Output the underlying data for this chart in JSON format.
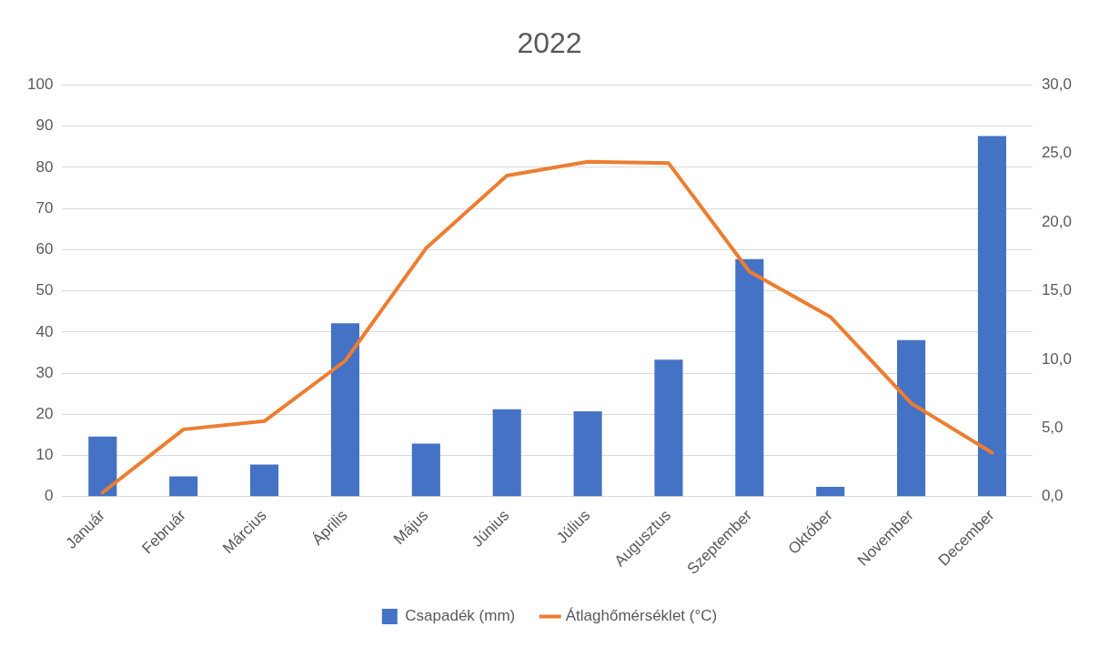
{
  "chart_data": {
    "type": "bar",
    "title": "2022",
    "categories": [
      "Január",
      "Február",
      "Március",
      "Április",
      "Május",
      "Június",
      "Július",
      "Augusztus",
      "Szeptember",
      "Október",
      "November",
      "December"
    ],
    "series": [
      {
        "name": "Csapadék (mm)",
        "color": "#4472c4",
        "values": [
          14.6,
          4.9,
          7.8,
          42.1,
          12.9,
          21.2,
          20.7,
          33.3,
          57.7,
          2.4,
          38.0,
          87.6
        ]
      },
      {
        "name": "Átlaghőmérséklet (°C)",
        "type": "line",
        "axis": "y2",
        "color": "#ed7d31",
        "values": [
          0.3,
          4.9,
          5.5,
          9.9,
          18.1,
          23.4,
          24.4,
          24.3,
          16.4,
          13.1,
          6.8,
          3.2
        ]
      }
    ],
    "ylim": [
      0,
      100
    ],
    "yticks": [
      0,
      10,
      20,
      30,
      40,
      50,
      60,
      70,
      80,
      90,
      100
    ],
    "y2lim": [
      0,
      30
    ],
    "y2ticks": [
      {
        "value": 0,
        "label": "0,0"
      },
      {
        "value": 5,
        "label": "5,0"
      },
      {
        "value": 10,
        "label": "10,0"
      },
      {
        "value": 15,
        "label": "15,0"
      },
      {
        "value": 20,
        "label": "20,0"
      },
      {
        "value": 25,
        "label": "25,0"
      },
      {
        "value": 30,
        "label": "30,0"
      }
    ],
    "grid": "y",
    "legend": "bottom"
  }
}
